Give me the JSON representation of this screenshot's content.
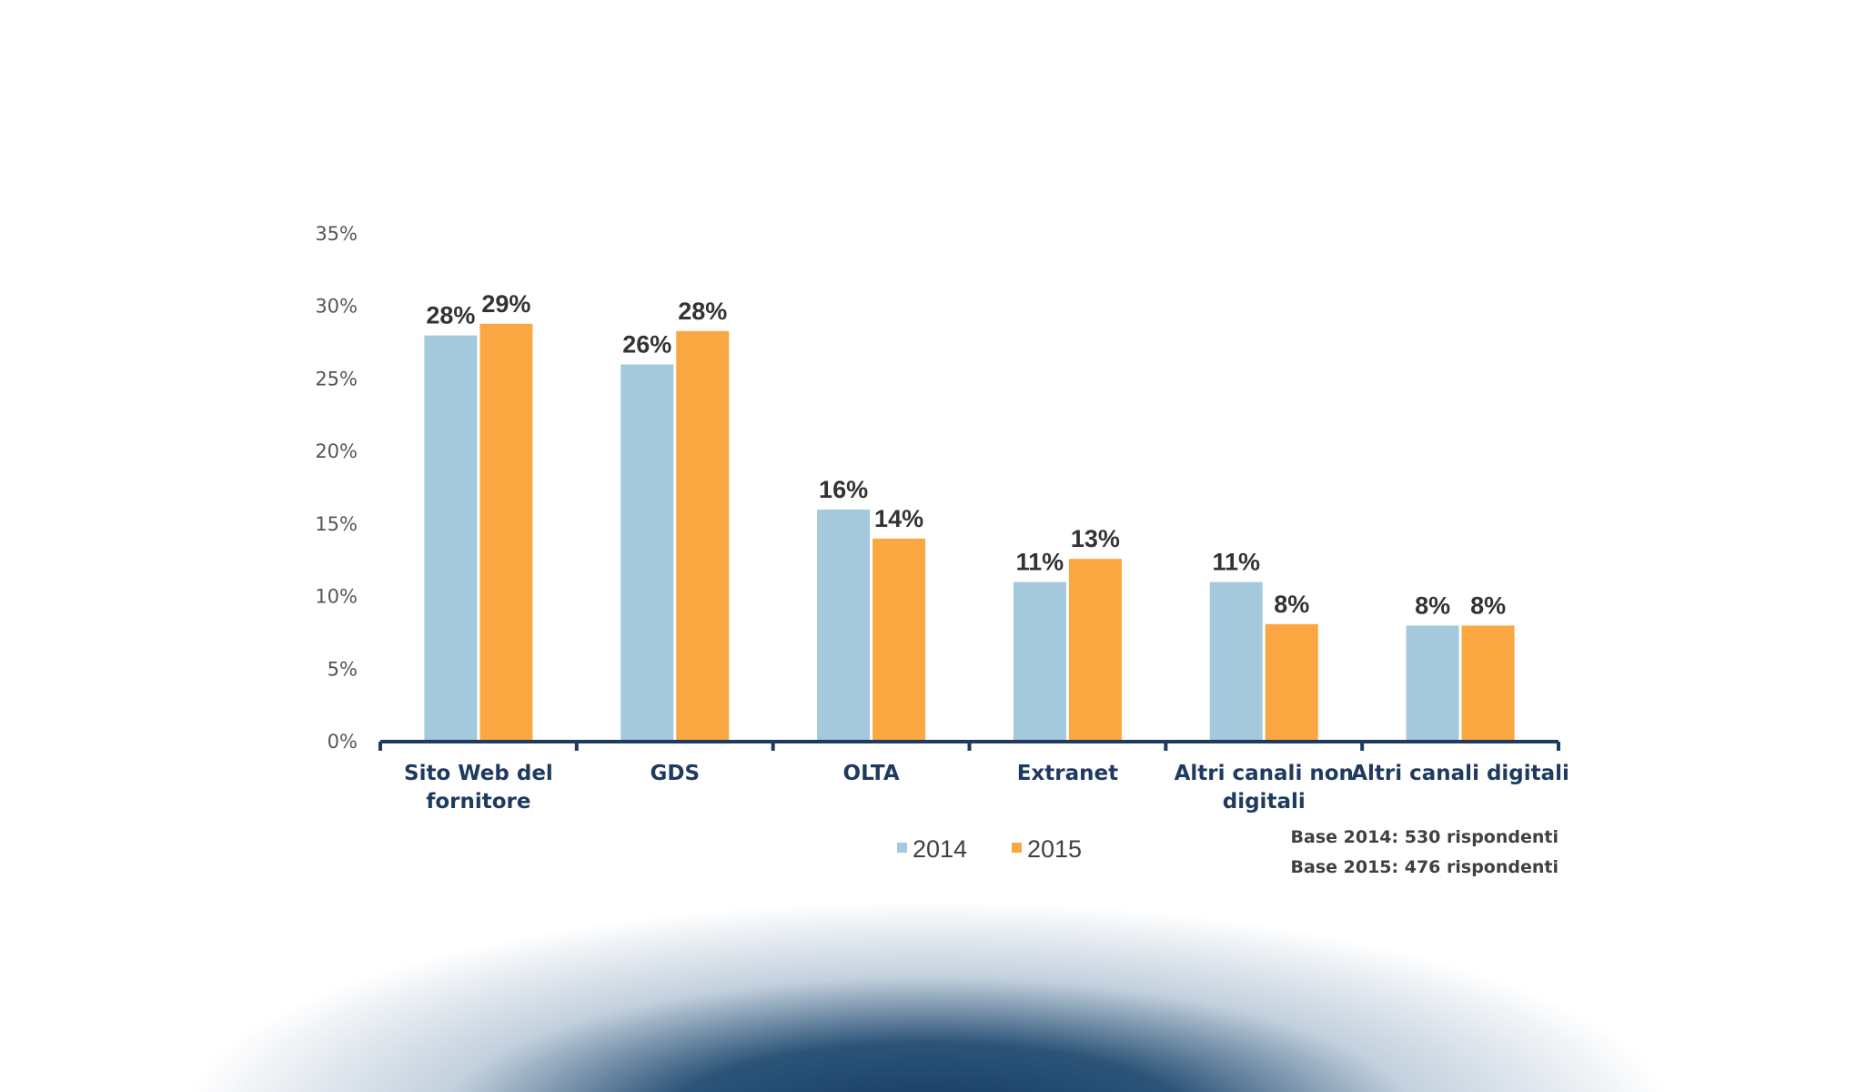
{
  "chart_data": {
    "type": "bar",
    "title": "",
    "xlabel": "",
    "ylabel": "",
    "categories": [
      [
        "Sito Web del",
        "fornitore"
      ],
      [
        "GDS"
      ],
      [
        "OLTA"
      ],
      [
        "Extranet"
      ],
      [
        "Altri canali non",
        "digitali"
      ],
      [
        "Altri canali digitali"
      ]
    ],
    "series": [
      {
        "name": "2014",
        "color": "#a4c8dc",
        "values": [
          28,
          26,
          16,
          11,
          11,
          8
        ],
        "plot_values": [
          28,
          26,
          16,
          11,
          11,
          8
        ],
        "labels": [
          "28%",
          "26%",
          "16%",
          "11%",
          "11%",
          "8%"
        ]
      },
      {
        "name": "2015",
        "color": "#fba741",
        "values": [
          29,
          28,
          14,
          13,
          8,
          8
        ],
        "plot_values": [
          28.8,
          28.3,
          14,
          12.6,
          8.1,
          8
        ],
        "labels": [
          "29%",
          "28%",
          "14%",
          "13%",
          "8%",
          "8%"
        ]
      }
    ],
    "ylim": [
      0,
      35
    ],
    "yticks": [
      0,
      5,
      10,
      15,
      20,
      25,
      30,
      35
    ],
    "ytick_labels": [
      "0%",
      "5%",
      "10%",
      "15%",
      "20%",
      "25%",
      "30%",
      "35%"
    ],
    "grid": false,
    "legend_position": "bottom-center",
    "axis_color": "#1f3a5f"
  },
  "notes": [
    "Base 2014: 530 rispondenti",
    "Base 2015: 476 rispondenti"
  ]
}
